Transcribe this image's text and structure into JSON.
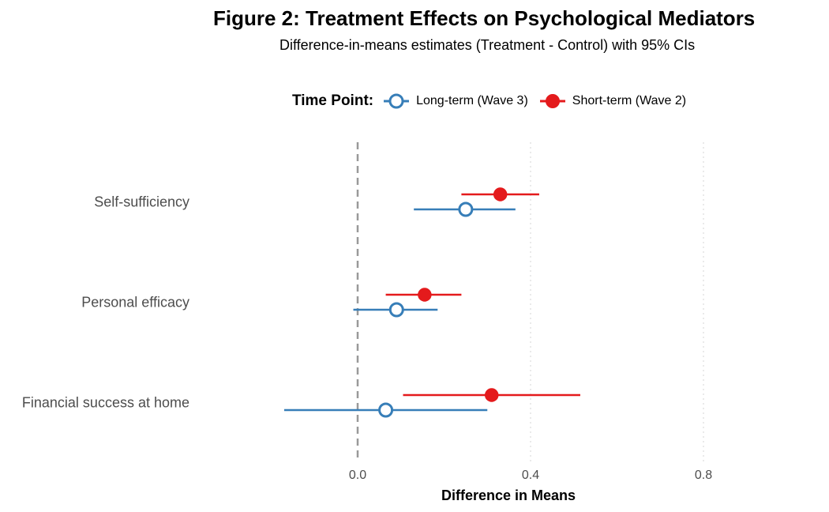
{
  "chart_data": {
    "type": "scatter",
    "title": "Figure 2: Treatment Effects on Psychological Mediators",
    "subtitle": "Difference-in-means estimates (Treatment - Control) with 95% CIs",
    "xlabel": "Difference in Means",
    "ylabel": "",
    "xlim": [
      -0.17,
      0.84
    ],
    "xticks": [
      "0.0",
      "0.4",
      "0.8"
    ],
    "xtick_values": [
      0.0,
      0.4,
      0.8
    ],
    "reference_line": 0.0,
    "categories": [
      "Self-sufficiency",
      "Personal efficacy",
      "Financial success at home"
    ],
    "legend": {
      "title": "Time Point:",
      "placement": "top"
    },
    "series": [
      {
        "name": "Long-term (Wave 3)",
        "color": "#377EB8",
        "marker": "open-circle",
        "estimates": [
          0.25,
          0.09,
          0.065
        ],
        "ci_low": [
          0.13,
          -0.01,
          -0.17
        ],
        "ci_high": [
          0.365,
          0.185,
          0.3
        ]
      },
      {
        "name": "Short-term (Wave 2)",
        "color": "#E41A1C",
        "marker": "filled-circle",
        "estimates": [
          0.33,
          0.155,
          0.31
        ],
        "ci_low": [
          0.24,
          0.065,
          0.105
        ],
        "ci_high": [
          0.42,
          0.24,
          0.515
        ]
      }
    ],
    "grid": "vertical-dotted"
  }
}
